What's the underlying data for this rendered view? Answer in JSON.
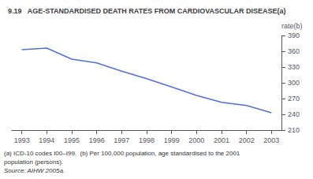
{
  "chart_data": {
    "type": "line",
    "title": "9.19   AGE-STANDARDISED DEATH RATES FROM CARDIOVASCULAR DISEASE(a)",
    "ylabel": "rate(b)",
    "x": [
      1993,
      1994,
      1995,
      1996,
      1997,
      1998,
      1999,
      2000,
      2001,
      2002,
      2003
    ],
    "values": [
      363,
      366,
      345,
      338,
      322,
      308,
      292,
      276,
      263,
      257,
      243
    ],
    "xlim": [
      1992.6,
      2003.4
    ],
    "xticks": [
      1993,
      1994,
      1995,
      1996,
      1997,
      1998,
      1999,
      2000,
      2001,
      2002,
      2003
    ],
    "ylim": [
      210,
      390
    ],
    "yticks": [
      210,
      240,
      270,
      300,
      330,
      360,
      390
    ],
    "grid": false,
    "annotations": [
      "(a) ICD-10 codes I00–I99.  (b) Per 100,000 population, age standardised to the 2001",
      "population (persons).",
      "Source: AIHW 2005a."
    ]
  }
}
